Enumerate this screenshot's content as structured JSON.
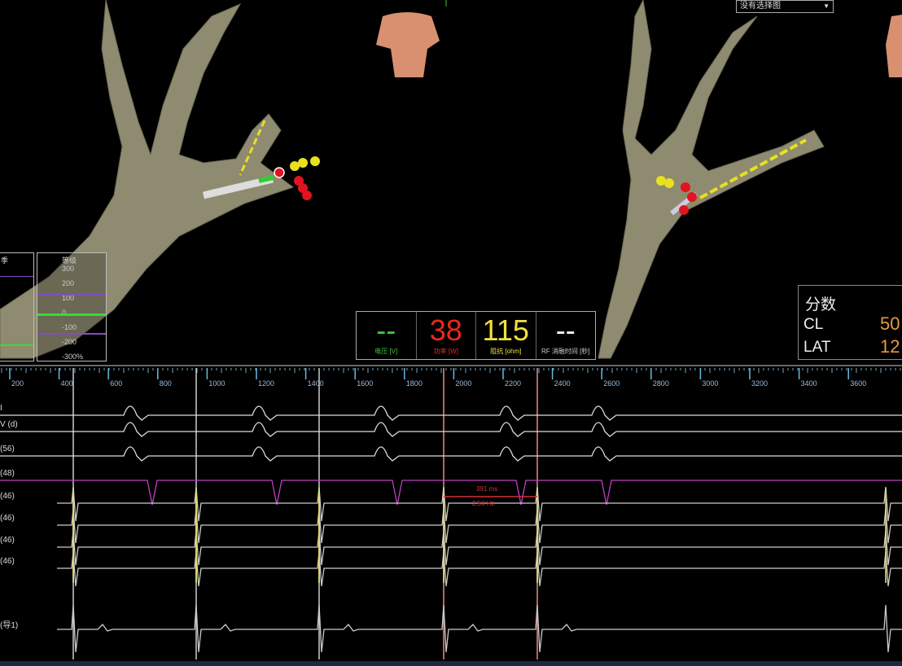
{
  "map": {
    "view_dropdown": {
      "value": "没有选择图"
    },
    "anatomy_color": "#8f8b70",
    "point_colors": {
      "ablation": "#e0141e",
      "tag": "#e8e020"
    }
  },
  "scales": {
    "left_title": "季",
    "right_title": "等级",
    "ticks": [
      "300",
      "200",
      "100",
      "0",
      "-100",
      "-200",
      "-300%"
    ]
  },
  "metrics": [
    {
      "value": "--",
      "label": "电压 [V]",
      "color": "#3ec83e"
    },
    {
      "value": "38",
      "label": "功率 [W]",
      "color": "#e8291e"
    },
    {
      "value": "115",
      "label": "阻抗 [ohm]",
      "color": "#f0e040"
    },
    {
      "value": "--",
      "label": "RF 消融时间 [秒]",
      "color": "#ffffff"
    }
  ],
  "score_panel": {
    "title": "分数",
    "rows": [
      {
        "label": "CL",
        "value": "50"
      },
      {
        "label": "LAT",
        "value": "12"
      }
    ],
    "value_color": "#e89a40"
  },
  "ruler": {
    "ticks": [
      "200",
      "400",
      "600",
      "800",
      "1000",
      "1200",
      "1400",
      "1600",
      "1800",
      "2000",
      "2200",
      "2400",
      "2600",
      "2800",
      "3000",
      "3200",
      "3400",
      "3600"
    ]
  },
  "channels": [
    {
      "label": "I",
      "color": "#dddddd"
    },
    {
      "label": "V (d)",
      "color": "#dddddd"
    },
    {
      "label": "(56)",
      "color": "#dddddd"
    },
    {
      "label": "(48)",
      "color": "#c040c0"
    },
    {
      "label": "(46)",
      "color": "#cccccc"
    },
    {
      "label": "(46)",
      "color": "#cccccc"
    },
    {
      "label": "(46)",
      "color": "#cccccc"
    },
    {
      "label": "(46)",
      "color": "#cccccc"
    },
    {
      "label": "(导1)",
      "color": "#cccccc"
    }
  ],
  "measurement": {
    "interval": "391 ms",
    "rate": "2.56 Hz"
  }
}
